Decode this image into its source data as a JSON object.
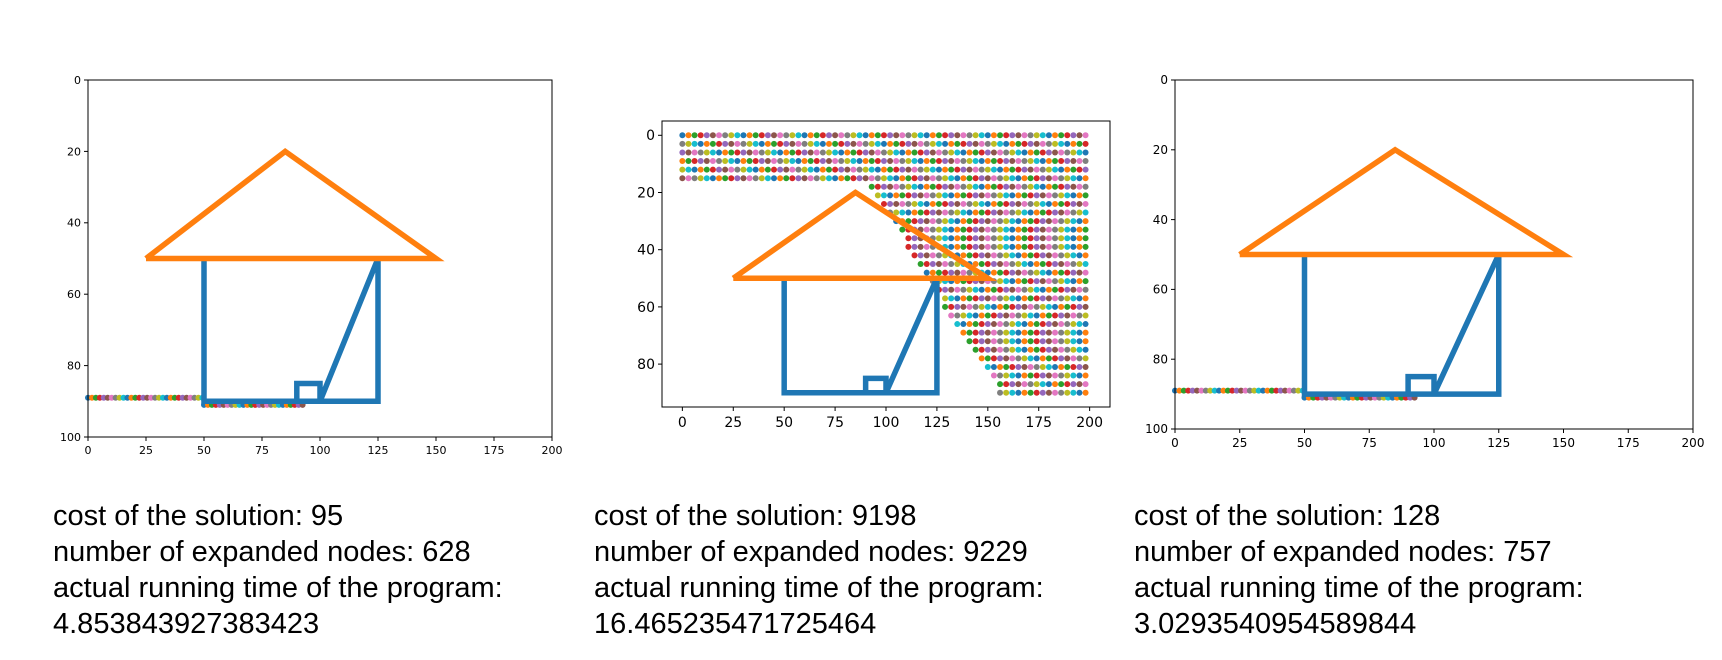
{
  "chart_data": [
    {
      "type": "line",
      "xlim": [
        0,
        200
      ],
      "ylim": [
        100,
        0
      ],
      "xticks": [
        "0",
        "25",
        "50",
        "75",
        "100",
        "125",
        "150",
        "175",
        "200"
      ],
      "yticks": [
        "0",
        "20",
        "40",
        "60",
        "80",
        "100"
      ],
      "grid": false,
      "series": [
        {
          "kind": "house-walls",
          "color": "#1f77b4",
          "x": [
            50,
            50,
            125,
            125,
            100,
            100,
            90,
            90,
            50
          ],
          "y": [
            50,
            90,
            90,
            50,
            90,
            85,
            85,
            90,
            90
          ]
        },
        {
          "kind": "roof",
          "color": "#ff7f0e",
          "x": [
            25,
            85,
            150,
            25
          ],
          "y": [
            50,
            20,
            50,
            50
          ]
        }
      ],
      "explored_points": {
        "rows": [
          {
            "y": 89,
            "x_from": 0,
            "x_to": 50
          },
          {
            "y": 91,
            "x_from": 50,
            "x_to": 93
          }
        ]
      },
      "stats": {
        "cost_label": "cost of the solution: 95",
        "nodes_label": "number of expanded nodes: 628",
        "time_label": "actual running time of the program:",
        "time_value": "4.853843927383423"
      }
    },
    {
      "type": "line",
      "xlim": [
        -10,
        210
      ],
      "ylim": [
        95,
        -5
      ],
      "xticks": [
        "0",
        "25",
        "50",
        "75",
        "100",
        "125",
        "150",
        "175",
        "200"
      ],
      "yticks": [
        "0",
        "20",
        "40",
        "60",
        "80"
      ],
      "grid": false,
      "series": [
        {
          "kind": "house-walls",
          "color": "#1f77b4",
          "x": [
            50,
            50,
            125,
            125,
            100,
            100,
            90,
            90,
            50
          ],
          "y": [
            50,
            90,
            90,
            50,
            90,
            85,
            85,
            90,
            90
          ]
        },
        {
          "kind": "roof",
          "color": "#ff7f0e",
          "x": [
            25,
            85,
            150,
            25
          ],
          "y": [
            50,
            20,
            50,
            50
          ]
        }
      ],
      "explored_points": {
        "region": "upper-right dense fill",
        "x_range": [
          0,
          200
        ],
        "y_range": [
          0,
          90
        ]
      },
      "stats": {
        "cost_label": "cost of the solution: 9198",
        "nodes_label": "number of expanded nodes: 9229",
        "time_label": "actual running time of the program:",
        "time_value": "16.465235471725464"
      }
    },
    {
      "type": "line",
      "xlim": [
        0,
        200
      ],
      "ylim": [
        100,
        0
      ],
      "xticks": [
        "0",
        "25",
        "50",
        "75",
        "100",
        "125",
        "150",
        "175",
        "200"
      ],
      "yticks": [
        "0",
        "20",
        "40",
        "60",
        "80",
        "100"
      ],
      "grid": false,
      "series": [
        {
          "kind": "house-walls",
          "color": "#1f77b4",
          "x": [
            50,
            50,
            125,
            125,
            100,
            100,
            90,
            90,
            50
          ],
          "y": [
            50,
            90,
            90,
            50,
            90,
            85,
            85,
            90,
            90
          ]
        },
        {
          "kind": "roof",
          "color": "#ff7f0e",
          "x": [
            25,
            85,
            150,
            25
          ],
          "y": [
            50,
            20,
            50,
            50
          ]
        }
      ],
      "explored_points": {
        "rows": [
          {
            "y": 89,
            "x_from": 0,
            "x_to": 50
          },
          {
            "y": 91,
            "x_from": 50,
            "x_to": 93
          }
        ]
      },
      "stats": {
        "cost_label": "cost of the solution: 128",
        "nodes_label": "number of expanded nodes: 757",
        "time_label": "actual running time of the program:",
        "time_value": "3.0293540954589844"
      }
    }
  ]
}
